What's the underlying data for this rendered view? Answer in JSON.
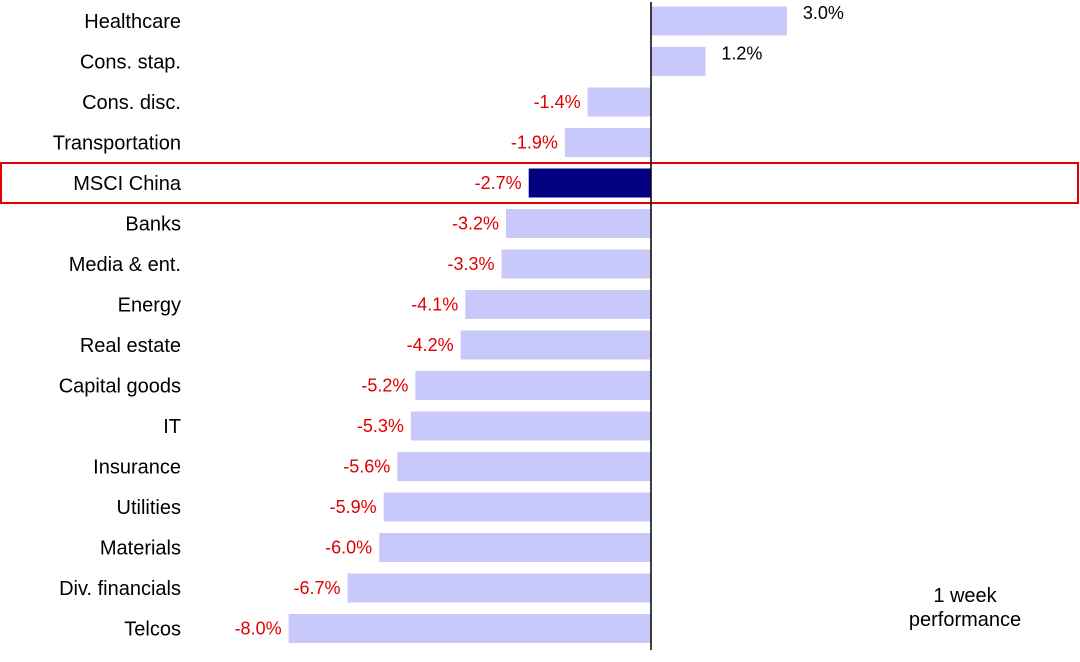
{
  "chart_data": {
    "type": "bar",
    "orientation": "horizontal",
    "categories": [
      "Healthcare",
      "Cons. stap.",
      "Cons. disc.",
      "Transportation",
      "MSCI China",
      "Banks",
      "Media & ent.",
      "Energy",
      "Real estate",
      "Capital goods",
      "IT",
      "Insurance",
      "Utilities",
      "Materials",
      "Div. financials",
      "Telcos"
    ],
    "values": [
      3.0,
      1.2,
      -1.4,
      -1.9,
      -2.7,
      -3.2,
      -3.3,
      -4.1,
      -4.2,
      -5.2,
      -5.3,
      -5.6,
      -5.9,
      -6.0,
      -6.7,
      -8.0
    ],
    "value_labels": [
      "3.0%",
      "1.2%",
      "-1.4%",
      "-1.9%",
      "-2.7%",
      "-3.2%",
      "-3.3%",
      "-4.1%",
      "-4.2%",
      "-5.2%",
      "-5.3%",
      "-5.6%",
      "-5.9%",
      "-6.0%",
      "-6.7%",
      "-8.0%"
    ],
    "highlight_category": "MSCI China",
    "annotation": "1 week\nperformance",
    "title": "",
    "xlabel": "",
    "ylabel": "",
    "xlim": [
      -8.0,
      3.0
    ],
    "grid": false,
    "colors": {
      "bar": "#c8c8fa",
      "highlight_bar": "#000080",
      "highlight_box": "#e00000",
      "negative_label": "#e00000",
      "positive_label": "#000000",
      "axis": "#000000"
    }
  }
}
